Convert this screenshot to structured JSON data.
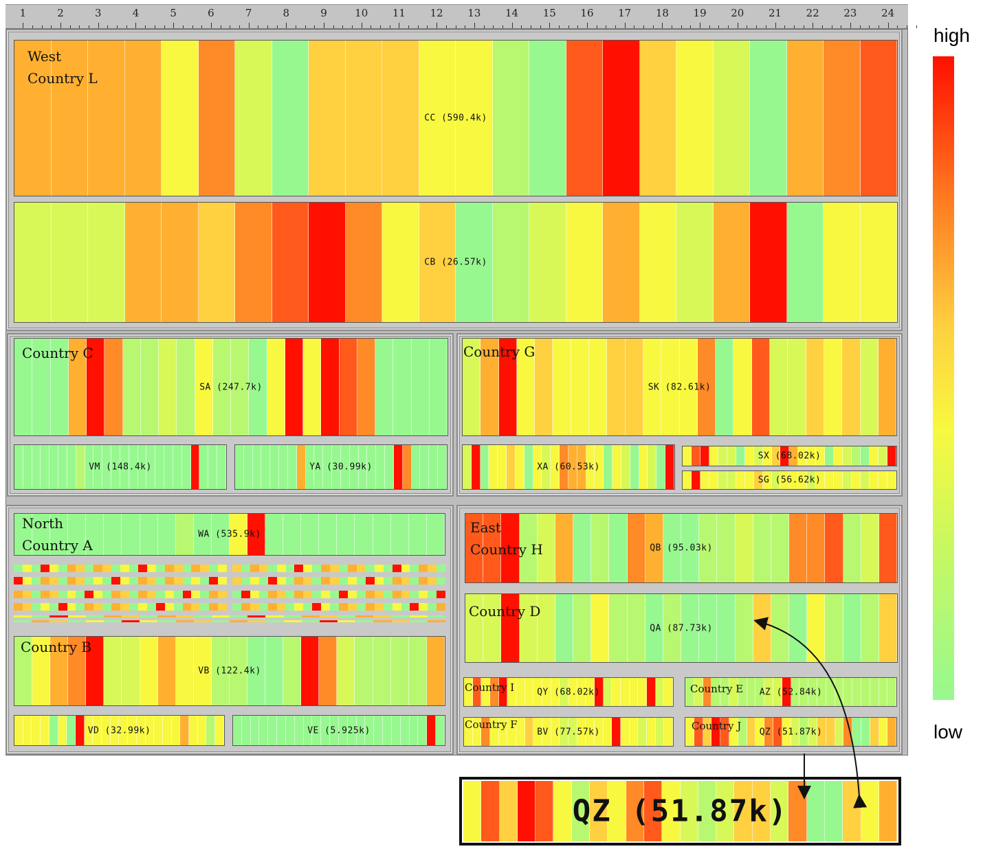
{
  "ruler": {
    "ticks": [
      "1",
      "2",
      "3",
      "4",
      "5",
      "6",
      "7",
      "8",
      "9",
      "10",
      "11",
      "12",
      "13",
      "14",
      "15",
      "16",
      "17",
      "18",
      "19",
      "20",
      "21",
      "22",
      "23",
      "24"
    ]
  },
  "legend": {
    "high": "high",
    "low": "low"
  },
  "regions": {
    "west": "West",
    "north": "North",
    "east": "East"
  },
  "countries": {
    "L": "Country L",
    "C": "Country C",
    "G": "Country G",
    "A": "Country A",
    "B": "Country B",
    "H": "Country H",
    "D": "Country D",
    "I": "Country I",
    "E": "Country E",
    "F": "Country F",
    "J": "Country J"
  },
  "zoom": {
    "label": "QZ (51.87k)"
  },
  "colors": {
    "scale": [
      "#98f890",
      "#b8f870",
      "#d8f858",
      "#f8f840",
      "#ffd040",
      "#ffb030",
      "#ff8a28",
      "#ff5a1c",
      "#ff1000"
    ]
  },
  "chart_data": {
    "type": "heatmap",
    "x": [
      "1",
      "2",
      "3",
      "4",
      "5",
      "6",
      "7",
      "8",
      "9",
      "10",
      "11",
      "12",
      "13",
      "14",
      "15",
      "16",
      "17",
      "18",
      "19",
      "20",
      "21",
      "22",
      "23",
      "24"
    ],
    "color_scale": {
      "low": "low",
      "high": "high"
    },
    "series": [
      {
        "name": "CC (590.4k)",
        "group": "Country L",
        "values": [
          5,
          5,
          5,
          5,
          3,
          6,
          2,
          0,
          4,
          4,
          4,
          3,
          3,
          1,
          0,
          7,
          8,
          4,
          3,
          2,
          0,
          5,
          6,
          7
        ]
      },
      {
        "name": "CB (26.57k)",
        "group": "Country L",
        "values": [
          2,
          2,
          2,
          5,
          5,
          4,
          6,
          7,
          8,
          6,
          3,
          4,
          0,
          1,
          2,
          3,
          5,
          3,
          2,
          5,
          8,
          0,
          3,
          3
        ]
      },
      {
        "name": "SA (247.7k)",
        "group": "Country C",
        "values": [
          0,
          0,
          0,
          5,
          8,
          6,
          1,
          1,
          2,
          1,
          3,
          1,
          1,
          0,
          3,
          8,
          3,
          8,
          7,
          6,
          0,
          0,
          0,
          0
        ]
      },
      {
        "name": "SK (82.61k)",
        "group": "Country G",
        "values": [
          2,
          5,
          8,
          3,
          4,
          3,
          3,
          3,
          4,
          4,
          3,
          3,
          3,
          6,
          0,
          3,
          7,
          2,
          2,
          4,
          3,
          4,
          2,
          5
        ]
      },
      {
        "name": "VM (148.4k)",
        "group": "Country C",
        "values": [
          0,
          0,
          0,
          0,
          0,
          0,
          0,
          1,
          0,
          0,
          0,
          0,
          0,
          0,
          0,
          0,
          0,
          0,
          0,
          0,
          8,
          0,
          0,
          0
        ]
      },
      {
        "name": "YA (30.99k)",
        "group": "Country C",
        "values": [
          0,
          0,
          0,
          0,
          0,
          0,
          0,
          5,
          0,
          0,
          0,
          0,
          0,
          0,
          0,
          0,
          0,
          0,
          8,
          6,
          0,
          0,
          0,
          0
        ]
      },
      {
        "name": "XA (60.53k)",
        "group": "Country G",
        "values": [
          2,
          8,
          0,
          3,
          3,
          4,
          3,
          0,
          3,
          2,
          3,
          6,
          5,
          5,
          3,
          3,
          0,
          3,
          2,
          0,
          3,
          2,
          0,
          8
        ]
      },
      {
        "name": "SX (68.02k)",
        "group": "Country G",
        "values": [
          3,
          7,
          8,
          3,
          2,
          2,
          0,
          3,
          2,
          3,
          4,
          8,
          5,
          3,
          3,
          3,
          0,
          3,
          2,
          1,
          0,
          3,
          2,
          8
        ]
      },
      {
        "name": "SG (56.62k)",
        "group": "Country G",
        "values": [
          3,
          8,
          3,
          3,
          2,
          2,
          3,
          3,
          4,
          3,
          2,
          3,
          3,
          3,
          2,
          3,
          3,
          3,
          2,
          3,
          2,
          3,
          3,
          3
        ]
      },
      {
        "name": "WA (535.9k)",
        "group": "Country A",
        "values": [
          0,
          0,
          0,
          0,
          0,
          0,
          0,
          0,
          0,
          1,
          0,
          0,
          3,
          8,
          0,
          0,
          0,
          0,
          0,
          0,
          0,
          0,
          0,
          0
        ]
      },
      {
        "name": "VB (122.4k)",
        "group": "Country B",
        "values": [
          1,
          3,
          5,
          6,
          8,
          2,
          2,
          3,
          5,
          3,
          3,
          1,
          1,
          0,
          0,
          1,
          8,
          6,
          2,
          1,
          1,
          1,
          1,
          5
        ]
      },
      {
        "name": "VD (32.99k)",
        "group": "Country B",
        "values": [
          3,
          3,
          3,
          3,
          0,
          3,
          0,
          8,
          3,
          3,
          3,
          3,
          3,
          3,
          3,
          3,
          3,
          3,
          3,
          5,
          3,
          3,
          1,
          3
        ]
      },
      {
        "name": "VE (5.925k)",
        "group": "Country B",
        "values": [
          0,
          0,
          0,
          0,
          0,
          0,
          0,
          0,
          0,
          0,
          0,
          0,
          0,
          0,
          0,
          0,
          0,
          0,
          0,
          0,
          0,
          0,
          8,
          0
        ]
      },
      {
        "name": "QB (95.03k)",
        "group": "Country H",
        "values": [
          7,
          7,
          8,
          1,
          2,
          5,
          0,
          1,
          0,
          6,
          5,
          0,
          0,
          1,
          1,
          2,
          1,
          1,
          6,
          6,
          7,
          1,
          2,
          7
        ]
      },
      {
        "name": "QA (87.73k)",
        "group": "Country D",
        "values": [
          2,
          2,
          8,
          2,
          2,
          0,
          1,
          3,
          1,
          1,
          0,
          1,
          0,
          0,
          0,
          1,
          4,
          1,
          0,
          3,
          1,
          0,
          1,
          4
        ]
      },
      {
        "name": "QY (68.02k)",
        "group": "Country I",
        "values": [
          3,
          7,
          3,
          6,
          8,
          3,
          3,
          3,
          3,
          3,
          3,
          2,
          3,
          3,
          3,
          8,
          2,
          3,
          3,
          3,
          3,
          8,
          2,
          3
        ]
      },
      {
        "name": "AZ (52.84k)",
        "group": "Country E",
        "values": [
          1,
          2,
          6,
          1,
          1,
          2,
          1,
          1,
          1,
          2,
          2,
          8,
          1,
          1,
          1,
          1,
          1,
          1,
          1,
          1,
          1,
          1,
          1,
          1
        ]
      },
      {
        "name": "BV (77.57k)",
        "group": "Country F",
        "values": [
          3,
          3,
          6,
          3,
          3,
          3,
          3,
          4,
          3,
          3,
          3,
          2,
          2,
          3,
          3,
          3,
          3,
          8,
          3,
          3,
          2,
          3,
          2,
          3
        ]
      },
      {
        "name": "QZ (51.87k)",
        "group": "Country J",
        "values": [
          3,
          7,
          4,
          8,
          7,
          3,
          1,
          4,
          3,
          6,
          7,
          3,
          2,
          1,
          2,
          4,
          4,
          2,
          6,
          0,
          0,
          4,
          3,
          5
        ]
      }
    ]
  }
}
